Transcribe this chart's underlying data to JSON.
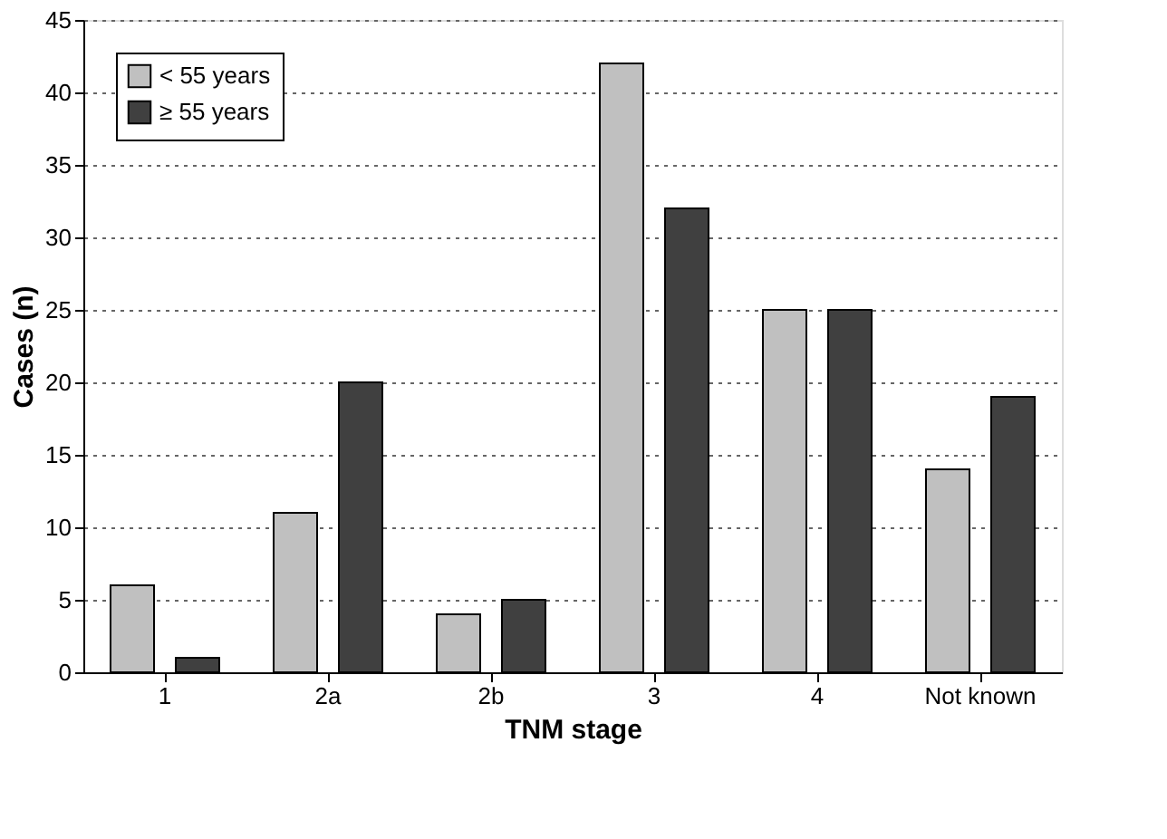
{
  "chart_data": {
    "type": "bar",
    "xlabel": "TNM stage",
    "ylabel": "Cases (n)",
    "categories": [
      "1",
      "2a",
      "2b",
      "3",
      "4",
      "Not known"
    ],
    "series": [
      {
        "name": "< 55 years",
        "color": "#c0c0c0",
        "values": [
          6,
          11,
          4,
          42,
          25,
          14
        ]
      },
      {
        "name": "≥ 55 years",
        "color": "#404040",
        "values": [
          1,
          20,
          5,
          32,
          25,
          19
        ]
      }
    ],
    "ylim": [
      0,
      45
    ],
    "yticks": [
      0,
      5,
      10,
      15,
      20,
      25,
      30,
      35,
      40,
      45
    ],
    "grid": "y",
    "legend": "top left"
  }
}
